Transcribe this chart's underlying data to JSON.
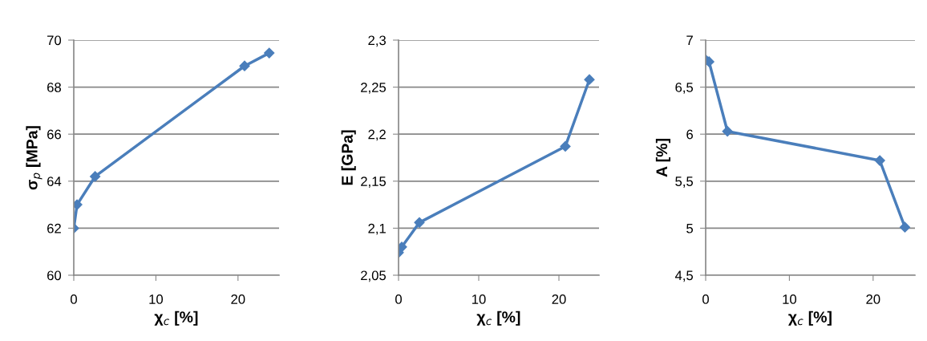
{
  "chart_data": [
    {
      "type": "line",
      "xlabel": "χ$_{c}$ [%]",
      "ylabel": "σ$_{p}$ [MPa]",
      "x": [
        0,
        0.4,
        2.6,
        20.8,
        23.8
      ],
      "series": [
        {
          "color": "#4a7ebb",
          "values": [
            62,
            63.0,
            64.2,
            68.9,
            69.45
          ]
        }
      ],
      "xlim": [
        0,
        25
      ],
      "xticks": [
        0,
        10,
        20
      ],
      "ylim": [
        60,
        70
      ],
      "yticks": [
        60,
        62,
        64,
        66,
        68,
        70
      ],
      "grid": "y",
      "marker": "diamond",
      "line_style": "solid"
    },
    {
      "type": "line",
      "xlabel": "χ$_{c}$ [%]",
      "ylabel": "E [GPa]",
      "x": [
        0,
        0.4,
        2.6,
        20.8,
        23.8
      ],
      "series": [
        {
          "color": "#4a7ebb",
          "values": [
            2.074,
            2.08,
            2.106,
            2.187,
            2.258
          ]
        }
      ],
      "xlim": [
        0,
        25
      ],
      "xticks": [
        0,
        10,
        20
      ],
      "ylim": [
        2.05,
        2.3
      ],
      "yticks": [
        {
          "value": 2.05,
          "label": "2,05"
        },
        {
          "value": 2.1,
          "label": "2,1"
        },
        {
          "value": 2.15,
          "label": "2,15"
        },
        {
          "value": 2.2,
          "label": "2,2"
        },
        {
          "value": 2.25,
          "label": "2,25"
        },
        {
          "value": 2.3,
          "label": "2,3"
        }
      ],
      "grid": "y",
      "marker": "diamond",
      "line_style": "solid"
    },
    {
      "type": "line",
      "xlabel": "χ$_{c}$ [%]",
      "ylabel": "A [%]",
      "x": [
        0,
        0.4,
        2.6,
        20.8,
        23.8
      ],
      "series": [
        {
          "color": "#4a7ebb",
          "values": [
            6.79,
            6.77,
            6.03,
            5.72,
            5.01
          ]
        }
      ],
      "xlim": [
        0,
        25
      ],
      "xticks": [
        0,
        10,
        20
      ],
      "ylim": [
        4.5,
        7
      ],
      "yticks": [
        {
          "value": 4.5,
          "label": "4,5"
        },
        {
          "value": 5,
          "label": "5"
        },
        {
          "value": 5.5,
          "label": "5,5"
        },
        {
          "value": 6,
          "label": "6"
        },
        {
          "value": 6.5,
          "label": "6,5"
        },
        {
          "value": 7,
          "label": "7"
        }
      ],
      "grid": "y",
      "marker": "diamond",
      "line_style": "solid"
    }
  ]
}
